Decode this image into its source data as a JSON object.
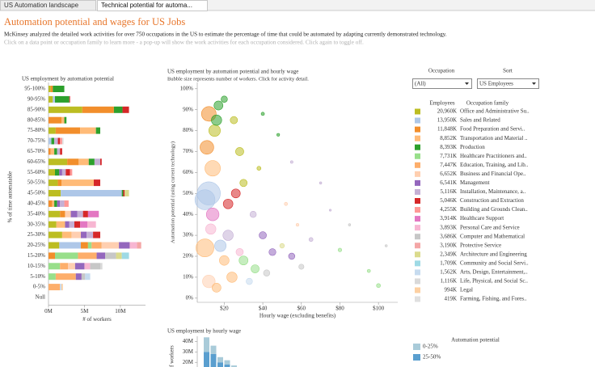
{
  "tabs": [
    "US Automation landscape",
    "Technical potential for automa..."
  ],
  "header": {
    "title": "Automation potential and wages for US Jobs",
    "description": "McKinsey analyzed the detailed work activities for over 750 occupations in the US to estimate the percentage of time that could be automated by adapting currently demonstrated technology.",
    "instruction": "Click on a data point or occupation family to learn more - a pop-up will show the work activities for each occupation considered. Click again to toggle off."
  },
  "filters": {
    "occupation_label": "Occupation",
    "occupation_value": "(All)",
    "sort_label": "Sort",
    "sort_value": "US Employees"
  },
  "legend": {
    "employees_header": "Employees",
    "family_header": "Occupation family",
    "employees": [
      "20,960K",
      "13,950K",
      "11,848K",
      "8,852K",
      "8,393K",
      "7,731K",
      "7,447K",
      "6,652K",
      "6,541K",
      "5,116K",
      "5,046K",
      "4,255K",
      "3,914K",
      "3,893K",
      "3,686K",
      "3,190K",
      "2,349K",
      "1,709K",
      "1,562K",
      "1,116K",
      "994K",
      "419K"
    ]
  },
  "chart_data": [
    {
      "type": "bar",
      "orientation": "horizontal",
      "stacked": true,
      "title": "US employment by automation potential",
      "x_label": "# of workers",
      "y_label": "% of time automatable",
      "categories": [
        "95-100%",
        "90-95%",
        "85-90%",
        "80-85%",
        "75-80%",
        "70-75%",
        "65-70%",
        "60-65%",
        "55-60%",
        "50-55%",
        "45-50%",
        "40-45%",
        "35-40%",
        "30-35%",
        "25-30%",
        "20-25%",
        "15-20%",
        "10-15%",
        "5-10%",
        "0-5%",
        "Null"
      ],
      "xlim": [
        0,
        13.5
      ],
      "xticks": [
        {
          "value": 0,
          "label": "0M"
        },
        {
          "value": 5,
          "label": "5M"
        },
        {
          "value": 10,
          "label": "10M"
        }
      ],
      "series": [
        {
          "name": "Office and Administrative Su..",
          "color": "#bcbd22",
          "values": [
            0.3,
            0.6,
            4.7,
            0,
            1.0,
            0,
            0,
            2.6,
            0.9,
            1.3,
            1.7,
            0,
            1.6,
            1.1,
            1.9,
            1.5,
            0,
            0,
            0,
            0,
            0
          ]
        },
        {
          "name": "Sales and Related",
          "color": "#aec7e8",
          "values": [
            0,
            0.3,
            0,
            0,
            0,
            0.4,
            0,
            0,
            0,
            0,
            8.5,
            0,
            0,
            0,
            0,
            3.0,
            0,
            0,
            0,
            0,
            0
          ]
        },
        {
          "name": "Food Preparation and Servi..",
          "color": "#f28e2b",
          "values": [
            0.3,
            0,
            4.4,
            1.8,
            3.4,
            0,
            0.3,
            1.6,
            0,
            0.5,
            0,
            0.5,
            0.7,
            0,
            0,
            1.0,
            0.9,
            0,
            0,
            0,
            0
          ]
        },
        {
          "name": "Transportation and Material ..",
          "color": "#ffbb78",
          "values": [
            0,
            0,
            0,
            0.4,
            2.2,
            0,
            0.5,
            1.4,
            0,
            4.5,
            0,
            0.3,
            0,
            1.2,
            1.3,
            0,
            0,
            0,
            0,
            0,
            0
          ]
        },
        {
          "name": "Production",
          "color": "#2ca02c",
          "values": [
            1.6,
            2.0,
            1.2,
            0.3,
            0.6,
            0.4,
            0.4,
            0.8,
            0.6,
            0,
            0.2,
            0.4,
            0,
            0,
            0,
            0,
            0,
            0,
            0,
            0,
            0
          ]
        },
        {
          "name": "Healthcare Practitioners and..",
          "color": "#98df8a",
          "values": [
            0,
            0,
            0,
            0,
            0,
            0,
            0,
            0,
            0,
            0,
            0,
            0,
            0,
            0,
            0,
            0.5,
            3.2,
            1.6,
            1.0,
            0,
            0
          ]
        },
        {
          "name": "Education, Training, and Lib..",
          "color": "#fdae6b",
          "values": [
            0,
            0,
            0,
            0,
            0,
            0,
            0,
            0,
            0,
            0,
            0,
            0,
            0,
            0,
            0,
            1.4,
            2.6,
            1.1,
            2.8,
            1.6,
            0
          ]
        },
        {
          "name": "Business and Financial Ope..",
          "color": "#ffcfb0",
          "values": [
            0,
            0,
            0,
            0,
            0,
            0,
            0,
            0,
            0,
            0,
            0,
            0,
            0.8,
            0,
            1.3,
            2.4,
            0,
            1.0,
            0,
            0,
            0
          ]
        },
        {
          "name": "Management",
          "color": "#9467bd",
          "values": [
            0,
            0,
            0,
            0,
            0,
            0,
            0,
            0,
            0.4,
            0,
            0,
            0.4,
            0.9,
            0.6,
            0.8,
            1.5,
            1.2,
            1.3,
            0.8,
            0,
            0
          ]
        },
        {
          "name": "Installation, Maintenance, a..",
          "color": "#c5b0d5",
          "values": [
            0,
            0,
            0,
            0,
            0,
            0.5,
            0.4,
            0.8,
            0.5,
            0,
            0,
            0.6,
            0.8,
            0.7,
            0.9,
            0,
            0,
            0,
            0,
            0,
            0
          ]
        },
        {
          "name": "Construction and Extraction",
          "color": "#d62728",
          "values": [
            0,
            0.1,
            0.9,
            0,
            0,
            0.3,
            0.3,
            0.2,
            0.6,
            0.9,
            0.2,
            0,
            0.7,
            0.8,
            1.0,
            0,
            0,
            0,
            0,
            0,
            0
          ]
        },
        {
          "name": "Building and Grounds Clean..",
          "color": "#ff9896",
          "values": [
            0,
            0,
            0,
            0,
            0,
            0.3,
            0,
            0,
            0.3,
            0,
            0,
            0.6,
            0,
            0,
            0,
            0,
            0,
            0,
            0,
            0,
            0
          ]
        },
        {
          "name": "Healthcare Support",
          "color": "#e377c2",
          "values": [
            0,
            0,
            0,
            0,
            0,
            0,
            0,
            0,
            0,
            0,
            0,
            0,
            1.5,
            1.0,
            0,
            0,
            0,
            0,
            0,
            0,
            0
          ]
        },
        {
          "name": "Personal Care and Service",
          "color": "#f7b6d2",
          "values": [
            0,
            0,
            0,
            0,
            0,
            0,
            0,
            0,
            0,
            0,
            0,
            0,
            0,
            1.2,
            0,
            1.0,
            0,
            0.8,
            0,
            0,
            0
          ]
        },
        {
          "name": "Computer and Mathematical",
          "color": "#c7c7c7",
          "values": [
            0,
            0,
            0,
            0,
            0,
            0,
            0,
            0,
            0,
            0,
            0,
            0,
            0,
            0,
            0,
            0,
            1.5,
            1.4,
            0.5,
            0,
            0
          ]
        },
        {
          "name": "Protective Service",
          "color": "#f4a6a6",
          "values": [
            0,
            0,
            0,
            0,
            0,
            0,
            0,
            0,
            0,
            0,
            0,
            0,
            0,
            0,
            0,
            0.6,
            0,
            0,
            0,
            0,
            0
          ]
        },
        {
          "name": "Architecture and Engineering",
          "color": "#dbdb8d",
          "values": [
            0,
            0,
            0,
            0,
            0,
            0,
            0,
            0,
            0,
            0,
            0.6,
            0,
            0,
            0,
            0,
            0,
            0.8,
            0,
            0,
            0,
            0
          ]
        },
        {
          "name": "Community and Social Servi..",
          "color": "#9edae5",
          "values": [
            0,
            0,
            0,
            0,
            0,
            0,
            0,
            0,
            0,
            0,
            0,
            0,
            0,
            0,
            0,
            0,
            1.0,
            0,
            0,
            0,
            0
          ]
        },
        {
          "name": "Arts, Design, Entertainment,..",
          "color": "#c6dbef",
          "values": [
            0,
            0,
            0,
            0,
            0,
            0,
            0,
            0,
            0,
            0,
            0,
            0,
            0,
            0,
            0,
            0,
            0,
            0,
            0.7,
            0.2,
            0
          ]
        },
        {
          "name": "Life, Physical, and Social Sc..",
          "color": "#d9d9d9",
          "values": [
            0,
            0,
            0,
            0,
            0,
            0,
            0,
            0,
            0,
            0,
            0,
            0,
            0,
            0,
            0,
            0,
            0,
            0.3,
            0,
            0,
            0
          ]
        },
        {
          "name": "Legal",
          "color": "#fdd0a2",
          "values": [
            0,
            0,
            0,
            0,
            0,
            0,
            0,
            0,
            0,
            0,
            0,
            0,
            0,
            0,
            0,
            0,
            0,
            0,
            0,
            0.2,
            0
          ]
        },
        {
          "name": "Farming, Fishing, and Fores..",
          "color": "#e0e0e0",
          "values": [
            0,
            0,
            0,
            0,
            0,
            0.2,
            0,
            0,
            0,
            0,
            0,
            0,
            0,
            0,
            0,
            0,
            0,
            0,
            0,
            0,
            0.1
          ]
        }
      ]
    },
    {
      "type": "scatter",
      "title": "US employment by automation potential and hourly wage",
      "subtitle": "Bubble size represents number of workers.  Click for activity detail.",
      "x_label": "Hourly wage (excluding benefits)",
      "y_label": "Automation potential (using current technology)",
      "xlim": [
        6,
        110
      ],
      "ylim": [
        -2,
        103
      ],
      "xticks": [
        {
          "value": 20,
          "label": "$20"
        },
        {
          "value": 40,
          "label": "$40"
        },
        {
          "value": 60,
          "label": "$60"
        },
        {
          "value": 80,
          "label": "$80"
        },
        {
          "value": 100,
          "label": "$100"
        }
      ],
      "yticks": [
        {
          "value": 0,
          "label": "0%"
        },
        {
          "value": 10,
          "label": "10%"
        },
        {
          "value": 20,
          "label": "20%"
        },
        {
          "value": 30,
          "label": "30%"
        },
        {
          "value": 40,
          "label": "40%"
        },
        {
          "value": 50,
          "label": "50%"
        },
        {
          "value": 60,
          "label": "60%"
        },
        {
          "value": 70,
          "label": "70%"
        },
        {
          "value": 80,
          "label": "80%"
        },
        {
          "value": 90,
          "label": "90%"
        },
        {
          "value": 100,
          "label": "100%"
        }
      ],
      "x": [
        12,
        10,
        14,
        11,
        12,
        15,
        10,
        12,
        18,
        22,
        17,
        20,
        16,
        25,
        28,
        30,
        14,
        13,
        22,
        26,
        35,
        40,
        45,
        55,
        60,
        42,
        30,
        36,
        50,
        65,
        80,
        95,
        100,
        85,
        75,
        70,
        55,
        48,
        40,
        24,
        20,
        16,
        33,
        28,
        104,
        38,
        52,
        58
      ],
      "y": [
        50,
        47,
        62,
        72,
        88,
        80,
        24,
        8,
        25,
        30,
        92,
        95,
        85,
        85,
        70,
        55,
        40,
        33,
        45,
        50,
        40,
        30,
        22,
        20,
        15,
        12,
        18,
        14,
        25,
        28,
        23,
        13,
        6,
        35,
        42,
        55,
        65,
        78,
        88,
        10,
        18,
        5,
        8,
        22,
        25,
        62,
        45,
        35
      ],
      "sizes": [
        2000,
        1500,
        900,
        700,
        800,
        500,
        1200,
        600,
        500,
        400,
        300,
        150,
        400,
        200,
        250,
        200,
        600,
        400,
        350,
        300,
        150,
        200,
        180,
        150,
        100,
        150,
        300,
        250,
        80,
        60,
        50,
        40,
        60,
        20,
        15,
        20,
        25,
        30,
        40,
        400,
        350,
        300,
        150,
        200,
        20,
        60,
        40,
        30
      ],
      "colors": [
        "#aec7e8",
        "#aec7e8",
        "#ffbb78",
        "#f28e2b",
        "#f28e2b",
        "#bcbd22",
        "#ffbb78",
        "#ffcfb0",
        "#aec7e8",
        "#c5b0d5",
        "#2ca02c",
        "#2ca02c",
        "#2ca02c",
        "#bcbd22",
        "#bcbd22",
        "#bcbd22",
        "#e377c2",
        "#f7b6d2",
        "#d62728",
        "#d62728",
        "#c5b0d5",
        "#9467bd",
        "#9467bd",
        "#9467bd",
        "#c7c7c7",
        "#c7c7c7",
        "#98df8a",
        "#98df8a",
        "#dbdb8d",
        "#c5b0d5",
        "#98df8a",
        "#98df8a",
        "#98df8a",
        "#c7c7c7",
        "#c5b0d5",
        "#c5b0d5",
        "#c5b0d5",
        "#2ca02c",
        "#2ca02c",
        "#ffbb78",
        "#ffbb78",
        "#ffbb78",
        "#c6dbef",
        "#f7b6d2",
        "#c7c7c7",
        "#bcbd22",
        "#ffcfb0",
        "#ffcfb0"
      ]
    },
    {
      "type": "bar",
      "orientation": "vertical",
      "stacked": true,
      "title": "US employment by hourly wage",
      "y_label": "# of workers",
      "legend_title": "Automation potential",
      "categories": [
        null,
        null,
        null,
        null,
        null,
        null,
        null
      ],
      "ylim": [
        0,
        45
      ],
      "yticks": [
        {
          "value": 20,
          "label": "20M"
        },
        {
          "value": 30,
          "label": "30M"
        },
        {
          "value": 40,
          "label": "40M"
        }
      ],
      "series": [
        {
          "name": "0-25%",
          "color": "#a9cbd9",
          "values": [
            14,
            8,
            5,
            4,
            3,
            2,
            2
          ]
        },
        {
          "name": "25-50%",
          "color": "#5a9fcf",
          "values": [
            30,
            28,
            20,
            18,
            14,
            10,
            8
          ]
        }
      ]
    }
  ]
}
